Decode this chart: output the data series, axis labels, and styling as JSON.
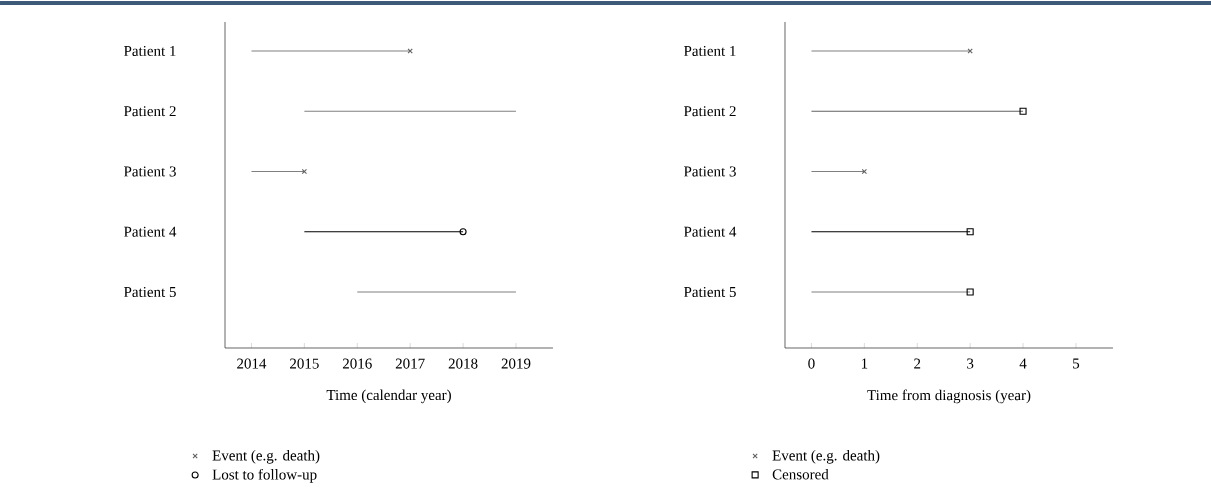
{
  "chart_data": [
    {
      "type": "bar",
      "orientation": "horizontal",
      "categories": [
        "Patient 1",
        "Patient 2",
        "Patient 3",
        "Patient 4",
        "Patient 5"
      ],
      "xlabel": "Time (calendar year)",
      "xlim": [
        2013.5,
        2019.7
      ],
      "xticks": [
        2014,
        2015,
        2016,
        2017,
        2018,
        2019
      ],
      "legend": "bottom",
      "series": [
        {
          "base": [
            2014,
            2015,
            2014,
            2015,
            2016
          ],
          "values": [
            3,
            4,
            1,
            3,
            3
          ],
          "colors": [
            "#808080",
            "#808080",
            "#808080",
            "#000000",
            "#808080"
          ]
        },
        {
          "type": "scatter",
          "name": "Event (e.g. death)",
          "marker": "cross",
          "color": "#606060",
          "values": [
            2017,
            null,
            2015,
            null,
            null
          ]
        },
        {
          "type": "scatter",
          "name": "Lost to follow-up",
          "marker": "circle",
          "color": "#000000",
          "values": [
            null,
            null,
            null,
            2018,
            null
          ]
        }
      ]
    },
    {
      "type": "bar",
      "orientation": "horizontal",
      "categories": [
        "Patient 1",
        "Patient 2",
        "Patient 3",
        "Patient 4",
        "Patient 5"
      ],
      "xlabel": "Time from diagnosis (year)",
      "xlim": [
        -0.5,
        5.7
      ],
      "xticks": [
        0,
        1,
        2,
        3,
        4,
        5
      ],
      "legend": "bottom",
      "series": [
        {
          "base": [
            0,
            0,
            0,
            0,
            0
          ],
          "values": [
            3,
            4,
            1,
            3,
            3
          ],
          "colors": [
            "#808080",
            "#606060",
            "#808080",
            "#000000",
            "#808080"
          ]
        },
        {
          "type": "scatter",
          "name": "Event (e.g. death)",
          "marker": "cross",
          "color": "#606060",
          "values": [
            3,
            null,
            1,
            null,
            null
          ]
        },
        {
          "type": "scatter",
          "name": "Censored",
          "marker": "square",
          "color": "#000000",
          "values": [
            null,
            4,
            null,
            3,
            3
          ]
        }
      ]
    }
  ]
}
